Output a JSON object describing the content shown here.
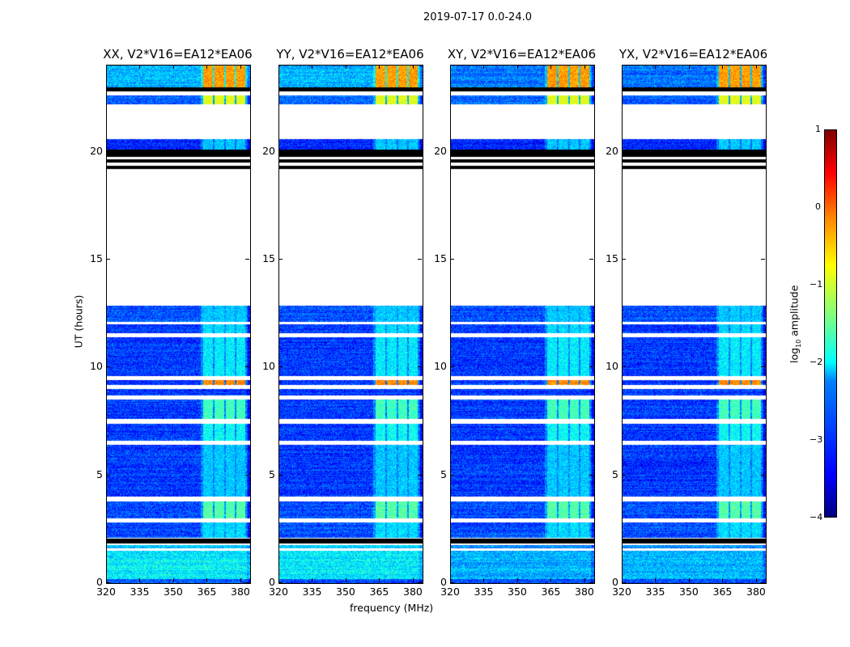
{
  "chart_data": {
    "type": "heatmap",
    "title": "2019-07-17 0.0-24.0",
    "xlabel": "frequency (MHz)",
    "ylabel": "UT (hours)",
    "xlim": [
      320,
      384
    ],
    "ylim": [
      0,
      24
    ],
    "xticks": [
      "320",
      "335",
      "350",
      "365",
      "380"
    ],
    "yticks": [
      "0",
      "5",
      "10",
      "15",
      "20"
    ],
    "panels": [
      {
        "title": "XX, V2*V16=EA12*EA06",
        "base_offset": 0.3
      },
      {
        "title": "YY, V2*V16=EA12*EA06",
        "base_offset": 0.3
      },
      {
        "title": "XY, V2*V16=EA12*EA06",
        "base_offset": 0
      },
      {
        "title": "YX, V2*V16=EA12*EA06",
        "base_offset": 0
      }
    ],
    "colorbar": {
      "label": "log10 amplitude",
      "label_main": "log",
      "label_sub": "10",
      "label_rest": " amplitude",
      "range": [
        -4,
        1
      ],
      "ticks": [
        "1",
        "0",
        "−1",
        "−2",
        "−3",
        "−4"
      ]
    },
    "bright_channel_blocks_MHz": [
      [
        363,
        367.5
      ],
      [
        368,
        372.5
      ],
      [
        373,
        377
      ],
      [
        378,
        382
      ]
    ],
    "time_bands": [
      {
        "t": [
          0,
          0.2
        ],
        "kind": "data",
        "level": -3.0
      },
      {
        "t": [
          0.2,
          1.5
        ],
        "kind": "data",
        "level": -2.5
      },
      {
        "t": [
          1.5,
          1.6
        ],
        "kind": "empty"
      },
      {
        "t": [
          1.6,
          1.75
        ],
        "kind": "data",
        "level": -2.7
      },
      {
        "t": [
          1.75,
          1.85
        ],
        "kind": "empty"
      },
      {
        "t": [
          1.85,
          2.05
        ],
        "kind": "flag"
      },
      {
        "t": [
          2.05,
          2.1
        ],
        "kind": "empty"
      },
      {
        "t": [
          2.1,
          2.8
        ],
        "kind": "data",
        "level": -3.0,
        "chan": -2.3
      },
      {
        "t": [
          2.8,
          3.0
        ],
        "kind": "empty"
      },
      {
        "t": [
          3.0,
          3.8
        ],
        "kind": "data",
        "level": -3.0,
        "chan": -1.7
      },
      {
        "t": [
          3.8,
          4.0
        ],
        "kind": "empty"
      },
      {
        "t": [
          4.0,
          6.4
        ],
        "kind": "data",
        "level": -3.1,
        "chan": -2.4
      },
      {
        "t": [
          6.4,
          6.6
        ],
        "kind": "empty"
      },
      {
        "t": [
          6.6,
          7.4
        ],
        "kind": "data",
        "level": -3.1,
        "chan": -2.1
      },
      {
        "t": [
          7.4,
          7.6
        ],
        "kind": "empty"
      },
      {
        "t": [
          7.6,
          8.5
        ],
        "kind": "data",
        "level": -3.1,
        "chan": -1.8
      },
      {
        "t": [
          8.5,
          8.7
        ],
        "kind": "empty"
      },
      {
        "t": [
          8.7,
          9.0
        ],
        "kind": "data",
        "level": -3.1
      },
      {
        "t": [
          9.0,
          9.2
        ],
        "kind": "empty"
      },
      {
        "t": [
          9.2,
          9.4
        ],
        "kind": "data",
        "level": -3.1,
        "chan": -0.3
      },
      {
        "t": [
          9.4,
          9.6
        ],
        "kind": "empty"
      },
      {
        "t": [
          9.6,
          11.4
        ],
        "kind": "data",
        "level": -3.1,
        "chan": -2.2
      },
      {
        "t": [
          11.4,
          11.6
        ],
        "kind": "empty"
      },
      {
        "t": [
          11.6,
          12.0
        ],
        "kind": "data",
        "level": -3.1,
        "chan": -2.3
      },
      {
        "t": [
          12.0,
          12.1
        ],
        "kind": "empty"
      },
      {
        "t": [
          12.1,
          12.85
        ],
        "kind": "data",
        "level": -3.0,
        "chan": -2.4
      },
      {
        "t": [
          12.85,
          19.2
        ],
        "kind": "empty"
      },
      {
        "t": [
          19.2,
          19.35
        ],
        "kind": "flag"
      },
      {
        "t": [
          19.35,
          19.5
        ],
        "kind": "empty"
      },
      {
        "t": [
          19.5,
          19.65
        ],
        "kind": "flag"
      },
      {
        "t": [
          19.65,
          19.75
        ],
        "kind": "empty"
      },
      {
        "t": [
          19.75,
          20.1
        ],
        "kind": "flag"
      },
      {
        "t": [
          20.1,
          20.6
        ],
        "kind": "data",
        "level": -3.2,
        "chan": -2.4
      },
      {
        "t": [
          20.6,
          22.2
        ],
        "kind": "empty"
      },
      {
        "t": [
          22.2,
          22.6
        ],
        "kind": "data",
        "level": -2.9,
        "chan": -1.0
      },
      {
        "t": [
          22.6,
          22.8
        ],
        "kind": "empty"
      },
      {
        "t": [
          22.8,
          23.0
        ],
        "kind": "flag"
      },
      {
        "t": [
          23.0,
          24.0
        ],
        "kind": "data",
        "level": -2.8,
        "chan": -0.4
      }
    ]
  }
}
